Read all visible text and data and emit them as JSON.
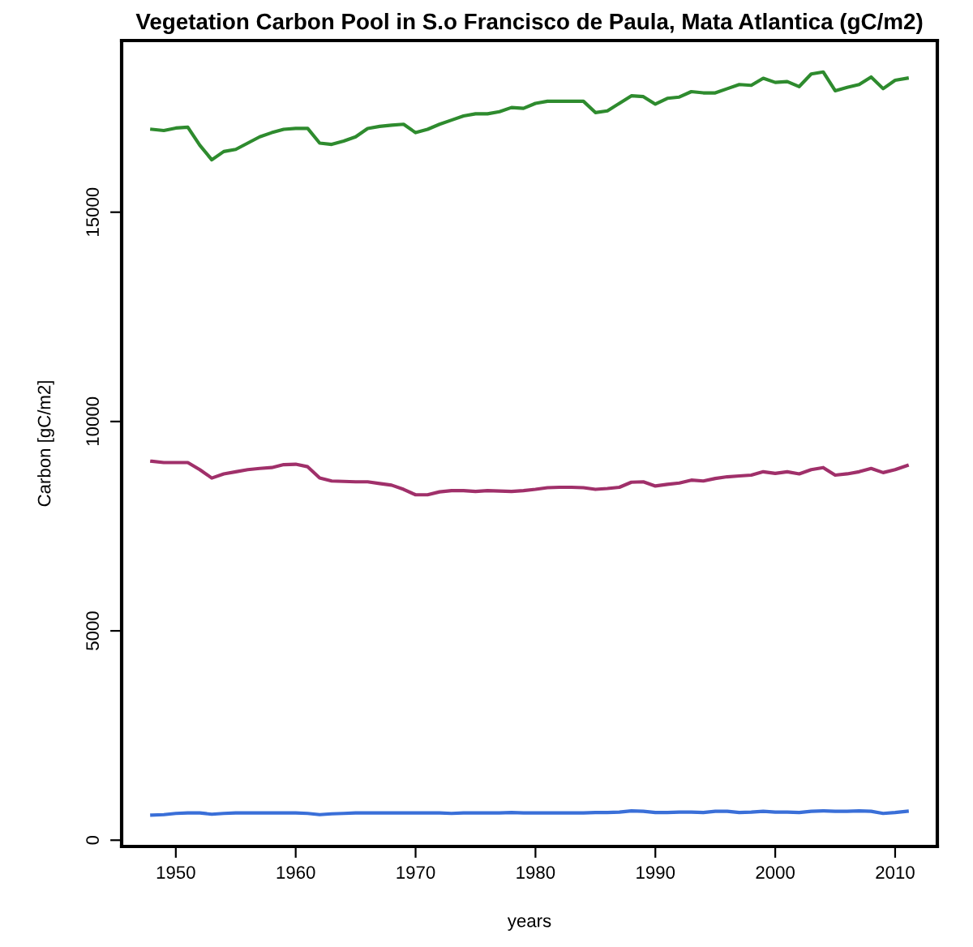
{
  "chart_data": {
    "type": "line",
    "title": "Vegetation Carbon Pool in S.o Francisco de Paula, Mata Atlantica (gC/m2)",
    "xlabel": "years",
    "ylabel": "Carbon [gC/m2]",
    "x": [
      1948,
      1949,
      1950,
      1951,
      1952,
      1953,
      1954,
      1955,
      1956,
      1957,
      1958,
      1959,
      1960,
      1961,
      1962,
      1963,
      1964,
      1965,
      1966,
      1967,
      1968,
      1969,
      1970,
      1971,
      1972,
      1973,
      1974,
      1975,
      1976,
      1977,
      1978,
      1979,
      1980,
      1981,
      1982,
      1983,
      1984,
      1985,
      1986,
      1987,
      1988,
      1989,
      1990,
      1991,
      1992,
      1993,
      1994,
      1995,
      1996,
      1997,
      1998,
      1999,
      2000,
      2001,
      2002,
      2003,
      2004,
      2005,
      2006,
      2007,
      2008,
      2009,
      2010,
      2011
    ],
    "series": [
      {
        "color": "#2e8b2e",
        "values": [
          16980,
          16950,
          17010,
          17030,
          16600,
          16250,
          16450,
          16500,
          16650,
          16800,
          16900,
          16980,
          17000,
          17000,
          16650,
          16620,
          16700,
          16800,
          17000,
          17050,
          17080,
          17100,
          16900,
          16980,
          17100,
          17200,
          17300,
          17350,
          17350,
          17400,
          17500,
          17480,
          17600,
          17650,
          17650,
          17650,
          17650,
          17380,
          17420,
          17600,
          17780,
          17760,
          17580,
          17720,
          17750,
          17880,
          17850,
          17850,
          17950,
          18050,
          18030,
          18200,
          18100,
          18120,
          18000,
          18300,
          18350,
          17900,
          17980,
          18050,
          18230,
          17950,
          18150,
          18200
        ]
      },
      {
        "color": "#a0306a",
        "values": [
          9050,
          9020,
          9020,
          9020,
          8850,
          8650,
          8750,
          8800,
          8850,
          8880,
          8900,
          8970,
          8980,
          8920,
          8650,
          8580,
          8570,
          8560,
          8560,
          8520,
          8480,
          8380,
          8250,
          8250,
          8320,
          8350,
          8350,
          8330,
          8350,
          8340,
          8330,
          8350,
          8380,
          8420,
          8430,
          8430,
          8420,
          8380,
          8400,
          8430,
          8550,
          8560,
          8460,
          8500,
          8530,
          8600,
          8580,
          8640,
          8680,
          8700,
          8720,
          8800,
          8760,
          8800,
          8750,
          8850,
          8900,
          8720,
          8750,
          8800,
          8880,
          8780,
          8850,
          8950
        ]
      },
      {
        "color": "#3a6fd8",
        "values": [
          600,
          610,
          640,
          650,
          650,
          620,
          640,
          650,
          650,
          650,
          650,
          650,
          650,
          640,
          610,
          630,
          640,
          650,
          650,
          650,
          650,
          650,
          650,
          650,
          650,
          640,
          650,
          650,
          650,
          650,
          660,
          650,
          650,
          650,
          650,
          650,
          650,
          660,
          660,
          670,
          700,
          690,
          660,
          660,
          670,
          670,
          660,
          690,
          690,
          660,
          670,
          690,
          670,
          670,
          660,
          690,
          700,
          690,
          690,
          700,
          690,
          640,
          660,
          690
        ]
      }
    ],
    "xlim": [
      1945.48,
      2013.52
    ],
    "ylim": [
      -150,
      19100
    ],
    "xticks": [
      1950,
      1960,
      1970,
      1980,
      1990,
      2000,
      2010
    ],
    "yticks": [
      0,
      5000,
      10000,
      15000
    ],
    "grid": false,
    "legend": false,
    "line_style": "solid",
    "marker": "none"
  }
}
